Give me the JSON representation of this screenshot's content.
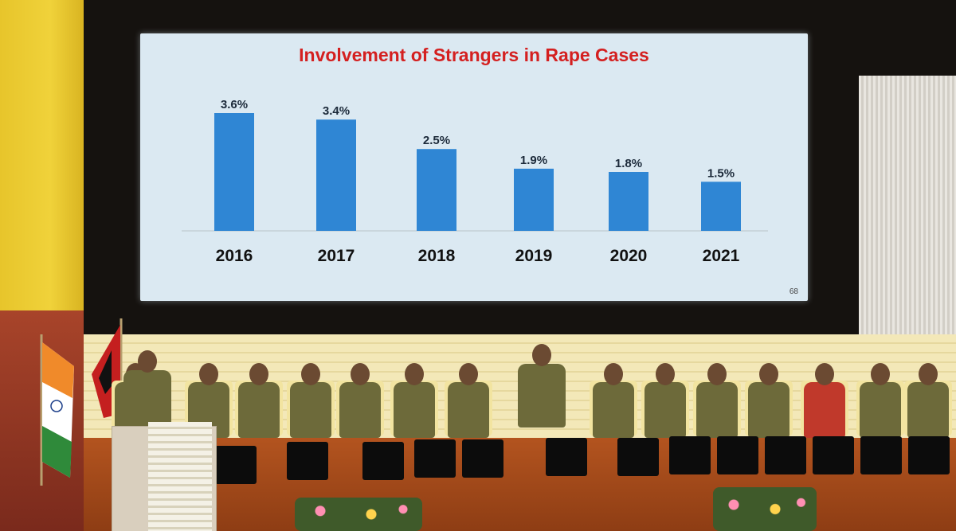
{
  "chart_data": {
    "type": "bar",
    "title": "Involvement of Strangers in Rape Cases",
    "categories": [
      "2016",
      "2017",
      "2018",
      "2019",
      "2020",
      "2021"
    ],
    "values": [
      3.6,
      3.4,
      2.5,
      1.9,
      1.8,
      1.5
    ],
    "value_labels": [
      "3.6%",
      "3.4%",
      "2.5%",
      "1.9%",
      "1.8%",
      "1.5%"
    ],
    "bar_color": "#2f86d4",
    "title_color": "#d42020",
    "grid": false,
    "legend": "none"
  },
  "slide": {
    "number": "68"
  },
  "scene": {
    "colors": {
      "screen_bg": "#dbe9f2",
      "stage_floor": "#a34a1a",
      "wall_left": "#e7c52b",
      "uniform": "#6d6a3a"
    }
  }
}
